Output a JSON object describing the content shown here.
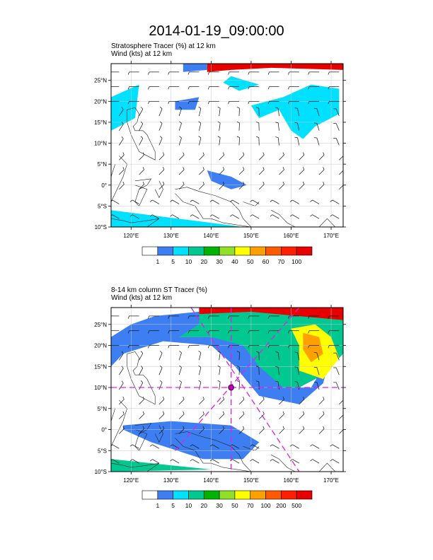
{
  "page": {
    "title": "2014-01-19_09:00:00"
  },
  "chart_data": [
    {
      "type": "heatmap",
      "subtitle1": "Stratosphere Tracer   (%)     at   12 km",
      "subtitle2": "Wind    (kts)      at   12 km",
      "xlim": [
        115,
        173
      ],
      "ylim": [
        -10,
        29
      ],
      "x_ticks": [
        120,
        130,
        140,
        150,
        160,
        170
      ],
      "x_tick_labels": [
        "120°E",
        "130°E",
        "140°E",
        "150°E",
        "160°E",
        "170°E"
      ],
      "y_ticks": [
        25,
        20,
        15,
        10,
        5,
        0,
        -5,
        -10
      ],
      "y_tick_labels": [
        "25°N",
        "20°N",
        "15°N",
        "10°N",
        "5°N",
        "0°",
        "5°S",
        "10°S"
      ],
      "grid": true,
      "colorbar_levels": [
        "1",
        "5",
        "10",
        "20",
        "30",
        "40",
        "50",
        "60",
        "70",
        "100"
      ],
      "colorbar_colors": [
        "#ffffff",
        "#3d7ff2",
        "#00e0ff",
        "#00c890",
        "#00b400",
        "#90e028",
        "#ffff00",
        "#ffa000",
        "#ff5a00",
        "#ff1e00",
        "#e60000"
      ],
      "regions": [
        {
          "desc": "strong band north",
          "level": 10,
          "pts": [
            [
              139,
              29
            ],
            [
              173,
              29
            ],
            [
              173,
              27.5
            ],
            [
              155,
              28
            ],
            [
              145,
              27.5
            ],
            [
              139,
              27
            ]
          ]
        },
        {
          "desc": "weak band north",
          "level": 1,
          "pts": [
            [
              133,
              29
            ],
            [
              139,
              29
            ],
            [
              139,
              27.5
            ],
            [
              133,
              27
            ]
          ]
        },
        {
          "desc": "blob northeast",
          "level": 2,
          "pts": [
            [
              145,
              26
            ],
            [
              152,
              24
            ],
            [
              147,
              22.5
            ],
            [
              143,
              24.5
            ]
          ]
        },
        {
          "desc": "blob west",
          "level": 2,
          "pts": [
            [
              115,
              21
            ],
            [
              122,
              24
            ],
            [
              121,
              16
            ],
            [
              115,
              13
            ]
          ]
        },
        {
          "desc": "east swirl",
          "level": 2,
          "pts": [
            [
              150,
              19
            ],
            [
              158,
              21
            ],
            [
              165,
              24
            ],
            [
              172,
              23
            ],
            [
              172,
              17
            ],
            [
              166,
              14
            ],
            [
              163,
              11
            ],
            [
              160,
              13
            ],
            [
              157,
              18
            ],
            [
              152,
              16
            ]
          ]
        },
        {
          "desc": "mid blob",
          "level": 1,
          "pts": [
            [
              131,
              20
            ],
            [
              137,
              21
            ],
            [
              136,
              18
            ],
            [
              131,
              18
            ]
          ]
        },
        {
          "desc": "equator band",
          "level": 1,
          "pts": [
            [
              139,
              3.5
            ],
            [
              145,
              2
            ],
            [
              149,
              0
            ],
            [
              145,
              -1
            ],
            [
              140,
              1
            ]
          ]
        },
        {
          "desc": "south band",
          "level": 2,
          "pts": [
            [
              115,
              -6
            ],
            [
              140,
              -9
            ],
            [
              148,
              -10
            ],
            [
              115,
              -10
            ]
          ]
        }
      ],
      "wind_barb_region": "whole_map"
    },
    {
      "type": "heatmap",
      "subtitle1": "8-14 km column ST Tracer    (%)",
      "subtitle2": "Wind    (kts)      at   12 km",
      "xlim": [
        115,
        173
      ],
      "ylim": [
        -10,
        29
      ],
      "x_ticks": [
        120,
        130,
        140,
        150,
        160,
        170
      ],
      "x_tick_labels": [
        "120°E",
        "130°E",
        "140°E",
        "150°E",
        "160°E",
        "170°E"
      ],
      "y_ticks": [
        25,
        20,
        15,
        10,
        5,
        0,
        -5,
        -10
      ],
      "y_tick_labels": [
        "25°N",
        "20°N",
        "15°N",
        "10°N",
        "5°N",
        "0°",
        "5°S",
        "10°S"
      ],
      "grid": true,
      "colorbar_levels": [
        "1",
        "5",
        "10",
        "20",
        "30",
        "50",
        "70",
        "100",
        "200",
        "500"
      ],
      "colorbar_colors": [
        "#ffffff",
        "#3d7ff2",
        "#00e0ff",
        "#00c890",
        "#00b400",
        "#90e028",
        "#ffff00",
        "#ffa000",
        "#ff5a00",
        "#ff1e00",
        "#e60000"
      ],
      "regions": [
        {
          "desc": "strong north",
          "level": 10,
          "pts": [
            [
              137,
              29
            ],
            [
              173,
              29
            ],
            [
              173,
              26
            ],
            [
              160,
              27
            ],
            [
              150,
              27
            ],
            [
              142,
              26.5
            ],
            [
              137,
              26
            ]
          ]
        },
        {
          "desc": "green arc",
          "level": 3,
          "pts": [
            [
              115,
              22
            ],
            [
              126,
              27
            ],
            [
              150,
              28
            ],
            [
              173,
              26
            ],
            [
              173,
              18
            ],
            [
              168,
              13
            ],
            [
              160,
              9
            ],
            [
              152,
              13
            ],
            [
              147,
              18
            ],
            [
              140,
              22
            ],
            [
              128,
              22
            ],
            [
              118,
              20
            ]
          ]
        },
        {
          "desc": "blue arc",
          "level": 1,
          "pts": [
            [
              115,
              22
            ],
            [
              120,
              25
            ],
            [
              126,
              27
            ],
            [
              137,
              28
            ],
            [
              137,
              25
            ],
            [
              132,
              22
            ],
            [
              140,
              22
            ],
            [
              148,
              20
            ],
            [
              152,
              15
            ],
            [
              158,
              10
            ],
            [
              165,
              10
            ],
            [
              170,
              18
            ],
            [
              168,
              11
            ],
            [
              162,
              6
            ],
            [
              152,
              8
            ],
            [
              146,
              15
            ],
            [
              140,
              20
            ],
            [
              128,
              21
            ],
            [
              118,
              18
            ],
            [
              115,
              15
            ]
          ]
        },
        {
          "desc": "east cyclone",
          "level": 6,
          "pts": [
            [
              160,
              24
            ],
            [
              166,
              25
            ],
            [
              170,
              22
            ],
            [
              172,
              17
            ],
            [
              168,
              12
            ],
            [
              162,
              14
            ],
            [
              162,
              20
            ]
          ]
        },
        {
          "desc": "east cyclone core",
          "level": 7,
          "pts": [
            [
              163,
              23
            ],
            [
              167,
              22
            ],
            [
              168,
              18
            ],
            [
              165,
              16
            ],
            [
              163,
              19
            ]
          ]
        },
        {
          "desc": "south band green",
          "level": 3,
          "pts": [
            [
              115,
              -7
            ],
            [
              125,
              -8
            ],
            [
              140,
              -9.5
            ],
            [
              115,
              -10
            ]
          ]
        },
        {
          "desc": "equatorial band",
          "level": 3,
          "pts": [
            [
              125,
              1
            ],
            [
              135,
              0
            ],
            [
              145,
              -2
            ],
            [
              148,
              -4
            ],
            [
              145,
              -6
            ],
            [
              138,
              -5
            ],
            [
              130,
              -2
            ]
          ]
        },
        {
          "desc": "equatorial band blue",
          "level": 1,
          "pts": [
            [
              118,
              1
            ],
            [
              130,
              2
            ],
            [
              145,
              1
            ],
            [
              152,
              -3
            ],
            [
              148,
              -7
            ],
            [
              138,
              -7
            ],
            [
              125,
              -3
            ],
            [
              118,
              0
            ]
          ]
        }
      ],
      "wind_barb_region": "whole_map",
      "cross_center": [
        145,
        10
      ],
      "cross_lines": [
        [
          [
            115,
            10
          ],
          [
            173,
            10
          ]
        ],
        [
          [
            145,
            29
          ],
          [
            145,
            -10
          ]
        ],
        [
          [
            135,
            29
          ],
          [
            162,
            -10
          ]
        ],
        [
          [
            162,
            29
          ],
          [
            131,
            -5
          ]
        ]
      ]
    }
  ]
}
